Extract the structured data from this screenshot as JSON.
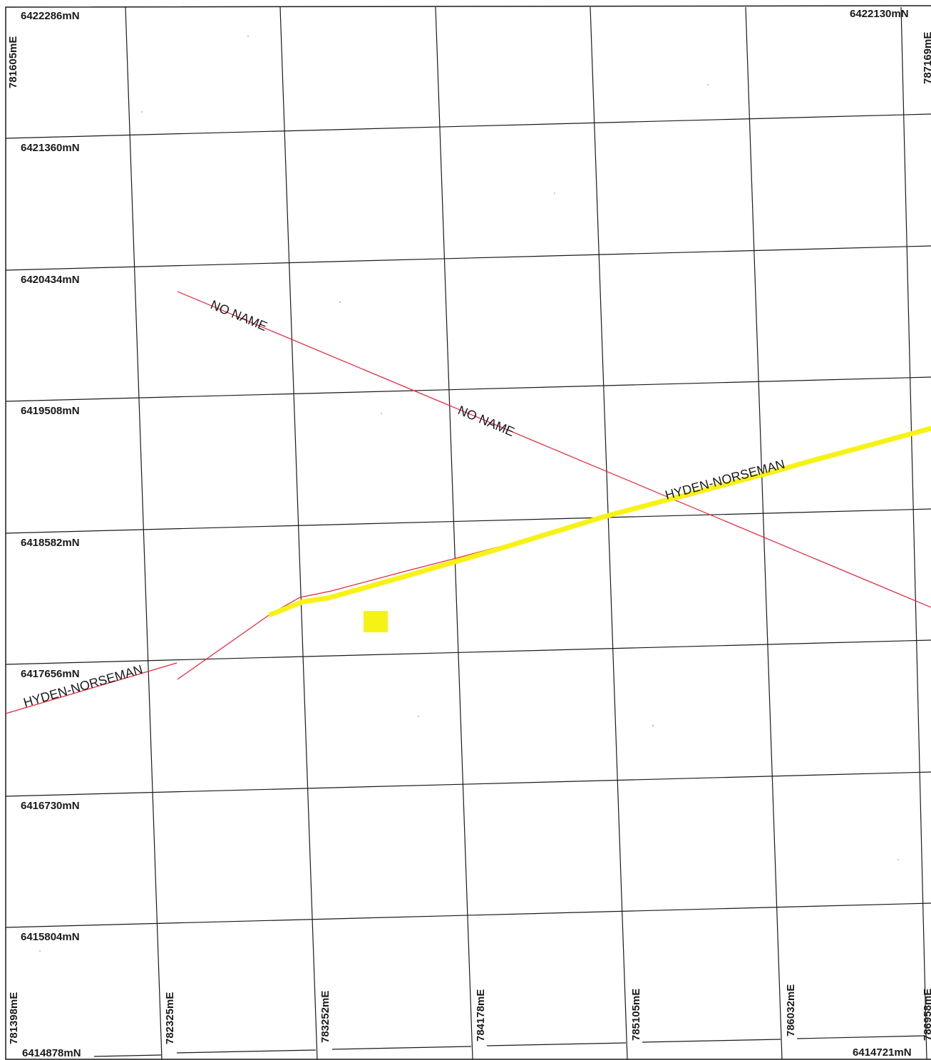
{
  "northings": {
    "top_left": "6422286mN",
    "top_right": "6422130mN",
    "rows": [
      "6421360mN",
      "6420434mN",
      "6419508mN",
      "6418582mN",
      "6417656mN",
      "6416730mN",
      "6415804mN"
    ],
    "bottom_left": "6414878mN",
    "bottom_right": "6414721mN"
  },
  "eastings": {
    "top_left": "781605mE",
    "top_right": "787169mE",
    "bottom": [
      "781398mE",
      "782325mE",
      "783252mE",
      "784178mE",
      "785105mE",
      "786032mE",
      "786958mE"
    ]
  },
  "roads": {
    "no_name_label_1": "NO NAME",
    "no_name_label_2": "NO NAME",
    "hyden_norseman_label_1": "HYDEN-NORSEMAN",
    "hyden_norseman_label_2": "HYDEN-NORSEMAN"
  },
  "colors": {
    "grid": "#1a1a1a",
    "minor_road": "#e8233a",
    "highlighted_road": "#f7f216",
    "marker": "#f7f216"
  }
}
